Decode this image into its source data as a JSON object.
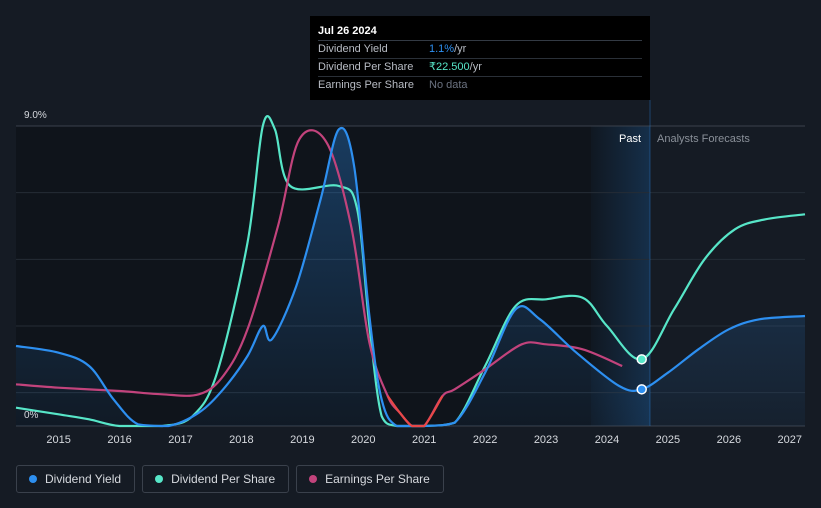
{
  "tooltip": {
    "date": "Jul 26 2024",
    "rows": [
      {
        "label": "Dividend Yield",
        "value": "1.1%",
        "unit": " /yr"
      },
      {
        "label": "Dividend Per Share",
        "value": "₹22.500",
        "unit": " /yr"
      },
      {
        "label": "Earnings Per Share",
        "value": "No data",
        "unit": ""
      }
    ]
  },
  "regions": {
    "past_label": "Past",
    "forecast_label": "Analysts Forecasts"
  },
  "colors": {
    "background": "#151b24",
    "dividend_yield": "#2d8ff0",
    "dividend_per_share": "#57e6c8",
    "earnings_per_share": "#c2437c",
    "earnings_negative": "#e84848"
  },
  "chart_data": {
    "type": "line",
    "y_axis_labels": [
      "9.0%",
      "0%"
    ],
    "ylim": [
      0,
      9
    ],
    "xlim": [
      2014.3,
      2027.25
    ],
    "x_ticks": [
      "2015",
      "2016",
      "2017",
      "2018",
      "2019",
      "2020",
      "2021",
      "2022",
      "2023",
      "2024",
      "2025",
      "2026",
      "2027"
    ],
    "grid": true,
    "past_boundary": 2024.57,
    "series": [
      {
        "name": "Dividend Yield",
        "unit": "%",
        "values": [
          [
            2014.3,
            2.4
          ],
          [
            2015.0,
            2.2
          ],
          [
            2015.5,
            1.8
          ],
          [
            2015.9,
            0.8
          ],
          [
            2016.3,
            0.05
          ],
          [
            2016.8,
            0.0
          ],
          [
            2017.3,
            0.4
          ],
          [
            2017.7,
            1.1
          ],
          [
            2018.1,
            2.1
          ],
          [
            2018.35,
            3.0
          ],
          [
            2018.5,
            2.6
          ],
          [
            2018.9,
            4.2
          ],
          [
            2019.3,
            6.8
          ],
          [
            2019.6,
            8.9
          ],
          [
            2019.85,
            7.8
          ],
          [
            2020.1,
            3.3
          ],
          [
            2020.3,
            0.8
          ],
          [
            2020.55,
            0.0
          ],
          [
            2021.0,
            0.0
          ],
          [
            2021.5,
            0.1
          ],
          [
            2022.0,
            1.6
          ],
          [
            2022.5,
            3.5
          ],
          [
            2022.9,
            3.2
          ],
          [
            2023.5,
            2.2
          ],
          [
            2024.2,
            1.2
          ],
          [
            2024.57,
            1.1
          ],
          [
            2025.0,
            1.6
          ],
          [
            2025.5,
            2.3
          ],
          [
            2026.0,
            2.9
          ],
          [
            2026.5,
            3.2
          ],
          [
            2027.25,
            3.3
          ]
        ]
      },
      {
        "name": "Dividend Per Share",
        "values": [
          [
            2014.3,
            0.55
          ],
          [
            2015.0,
            0.35
          ],
          [
            2015.5,
            0.2
          ],
          [
            2016.0,
            0.0
          ],
          [
            2016.7,
            0.0
          ],
          [
            2017.2,
            0.3
          ],
          [
            2017.6,
            1.6
          ],
          [
            2018.1,
            5.5
          ],
          [
            2018.35,
            9.0
          ],
          [
            2018.55,
            8.9
          ],
          [
            2018.8,
            7.2
          ],
          [
            2019.6,
            7.2
          ],
          [
            2019.9,
            6.5
          ],
          [
            2020.1,
            3.0
          ],
          [
            2020.3,
            0.3
          ],
          [
            2020.55,
            0.0
          ],
          [
            2021.0,
            0.0
          ],
          [
            2021.5,
            0.1
          ],
          [
            2022.0,
            1.8
          ],
          [
            2022.5,
            3.6
          ],
          [
            2023.0,
            3.8
          ],
          [
            2023.6,
            3.85
          ],
          [
            2024.0,
            3.0
          ],
          [
            2024.57,
            2.0
          ],
          [
            2025.1,
            3.5
          ],
          [
            2025.6,
            5.0
          ],
          [
            2026.1,
            5.9
          ],
          [
            2026.6,
            6.2
          ],
          [
            2027.25,
            6.35
          ]
        ]
      },
      {
        "name": "Earnings Per Share",
        "values": [
          [
            2014.3,
            1.25
          ],
          [
            2015.0,
            1.15
          ],
          [
            2016.0,
            1.05
          ],
          [
            2016.7,
            0.95
          ],
          [
            2017.3,
            0.95
          ],
          [
            2017.7,
            1.5
          ],
          [
            2018.1,
            2.9
          ],
          [
            2018.6,
            6.0
          ],
          [
            2018.95,
            8.6
          ],
          [
            2019.4,
            8.5
          ],
          [
            2019.8,
            6.0
          ],
          [
            2020.1,
            2.5
          ],
          [
            2020.4,
            0.9
          ],
          [
            2020.6,
            0.4
          ],
          [
            2020.8,
            0.0
          ],
          [
            2021.0,
            0.0
          ],
          [
            2021.3,
            0.9
          ],
          [
            2021.5,
            1.1
          ],
          [
            2022.0,
            1.7
          ],
          [
            2022.6,
            2.45
          ],
          [
            2023.0,
            2.45
          ],
          [
            2023.6,
            2.3
          ],
          [
            2024.25,
            1.8
          ]
        ]
      }
    ]
  },
  "legend": [
    {
      "label": "Dividend Yield",
      "color": "#2d8ff0"
    },
    {
      "label": "Dividend Per Share",
      "color": "#57e6c8"
    },
    {
      "label": "Earnings Per Share",
      "color": "#c2437c"
    }
  ]
}
